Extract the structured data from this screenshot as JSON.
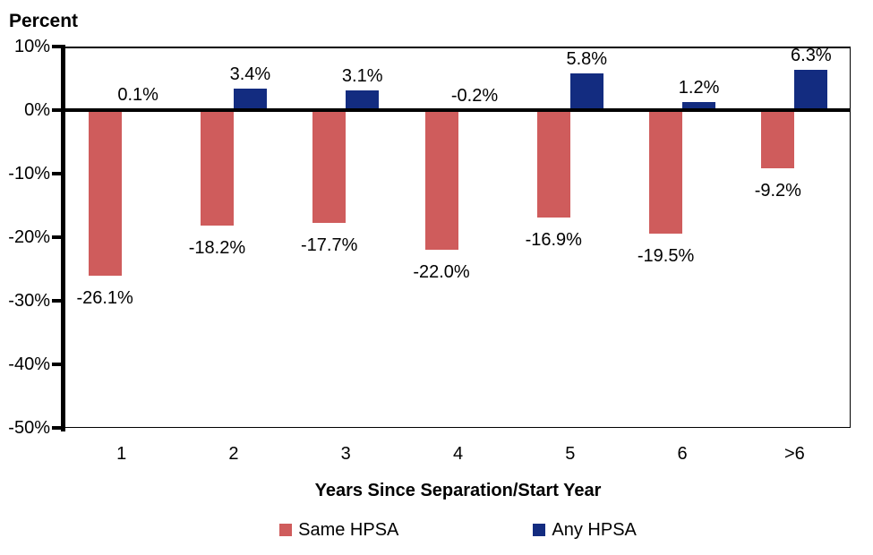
{
  "chart_data": {
    "type": "bar",
    "title": "",
    "ylabel": "Percent",
    "xlabel": "Years Since Separation/Start Year",
    "categories": [
      "1",
      "2",
      "3",
      "4",
      "5",
      "6",
      ">6"
    ],
    "series": [
      {
        "name": "Same HPSA",
        "color": "#CF5C5C",
        "label_side": "below",
        "values": [
          -26.1,
          -18.2,
          -17.7,
          -22.0,
          -16.9,
          -19.5,
          -9.2
        ],
        "labels": [
          "-26.1%",
          "-18.2%",
          "-17.7%",
          "-22.0%",
          "-16.9%",
          "-19.5%",
          "-9.2%"
        ]
      },
      {
        "name": "Any HPSA",
        "color": "#132C80",
        "label_side": "above",
        "values": [
          0.1,
          3.4,
          3.1,
          -0.2,
          5.8,
          1.2,
          6.3
        ],
        "labels": [
          "0.1%",
          "3.4%",
          "3.1%",
          "-0.2%",
          "5.8%",
          "1.2%",
          "6.3%"
        ]
      }
    ],
    "ylim": [
      -50,
      10
    ],
    "yticks": [
      {
        "value": 10,
        "label": "10%"
      },
      {
        "value": 0,
        "label": "0%"
      },
      {
        "value": -10,
        "label": "-10%"
      },
      {
        "value": -20,
        "label": "-20%"
      },
      {
        "value": -30,
        "label": "-30%"
      },
      {
        "value": -40,
        "label": "-40%"
      },
      {
        "value": -50,
        "label": "-50%"
      }
    ],
    "grid": false,
    "legend_position": "bottom",
    "axis_color": "#000000",
    "background_color": "#FFFFFF"
  }
}
